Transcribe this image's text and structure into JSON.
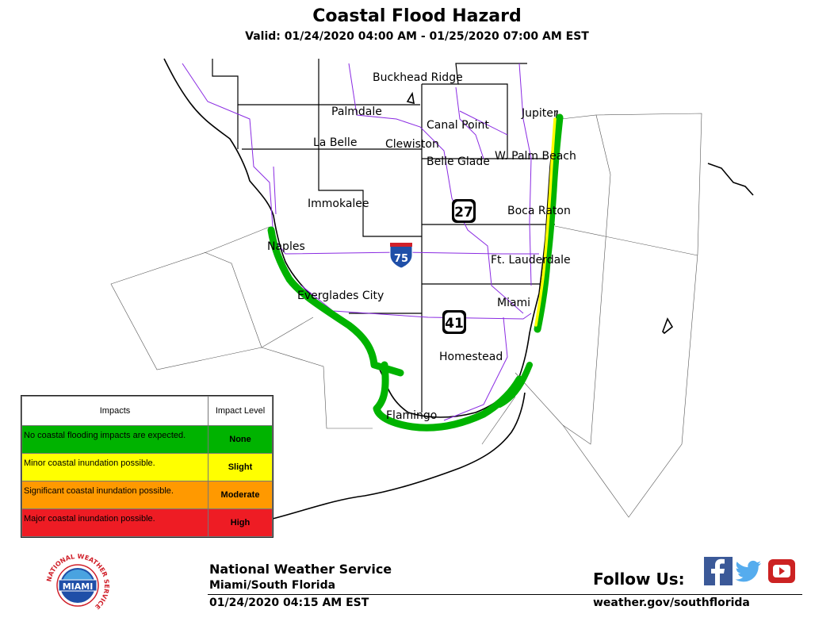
{
  "header": {
    "title": "Coastal Flood Hazard",
    "valid": "Valid: 01/24/2020 04:00 AM - 01/25/2020 07:00 AM EST"
  },
  "map": {
    "cities": [
      "Buckhead Ridge",
      "Palmdale",
      "Canal Point",
      "Jupiter",
      "La Belle",
      "Clewiston",
      "Belle Glade",
      "W. Palm Beach",
      "Immokalee",
      "Boca Raton",
      "Naples",
      "Ft. Lauderdale",
      "Everglades City",
      "Miami",
      "Homestead",
      "Flamingo"
    ],
    "shields": {
      "us27": "27",
      "us41": "41",
      "i75": "75"
    },
    "colors": {
      "none": "#00b300",
      "slight": "#ffff00",
      "moderate": "#ff9900",
      "high": "#ee1c24",
      "county_line": "#000000",
      "roads": "#8a2be2",
      "marine_zones": "#555555"
    }
  },
  "legend": {
    "col_impacts": "Impacts",
    "col_level": "Impact Level",
    "rows": [
      {
        "impact": "No coastal flooding impacts are expected.",
        "level": "None",
        "color": "#00b300"
      },
      {
        "impact": "Minor coastal inundation possible.",
        "level": "Slight",
        "color": "#ffff00"
      },
      {
        "impact": "Significant coastal inundation possible.",
        "level": "Moderate",
        "color": "#ff9900"
      },
      {
        "impact": "Major coastal inundation possible.",
        "level": "High",
        "color": "#ee1c24"
      }
    ]
  },
  "footer": {
    "org": "National Weather Service",
    "office": "Miami/South Florida",
    "issued": "01/24/2020 04:15 AM EST",
    "follow": "Follow Us:",
    "website": "weather.gov/southflorida",
    "logo_text": "MIAMI",
    "logo_ring": "NATIONAL WEATHER SERVICE"
  }
}
